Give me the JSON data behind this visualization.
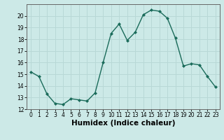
{
  "x": [
    0,
    1,
    2,
    3,
    4,
    5,
    6,
    7,
    8,
    9,
    10,
    11,
    12,
    13,
    14,
    15,
    16,
    17,
    18,
    19,
    20,
    21,
    22,
    23
  ],
  "y": [
    15.2,
    14.8,
    13.3,
    12.5,
    12.4,
    12.9,
    12.8,
    12.7,
    13.4,
    16.0,
    18.5,
    19.3,
    17.9,
    18.6,
    20.1,
    20.5,
    20.4,
    19.8,
    18.1,
    15.7,
    15.9,
    15.8,
    14.8,
    13.9
  ],
  "line_color": "#1a6b5a",
  "marker": "D",
  "marker_size": 2.0,
  "bg_color": "#cce9e7",
  "grid_color": "#b8d8d6",
  "xlabel": "Humidex (Indice chaleur)",
  "xlim": [
    -0.5,
    23.5
  ],
  "ylim": [
    12,
    21
  ],
  "yticks": [
    12,
    13,
    14,
    15,
    16,
    17,
    18,
    19,
    20
  ],
  "xticks": [
    0,
    1,
    2,
    3,
    4,
    5,
    6,
    7,
    8,
    9,
    10,
    11,
    12,
    13,
    14,
    15,
    16,
    17,
    18,
    19,
    20,
    21,
    22,
    23
  ],
  "tick_fontsize": 5.5,
  "label_fontsize": 7.5
}
